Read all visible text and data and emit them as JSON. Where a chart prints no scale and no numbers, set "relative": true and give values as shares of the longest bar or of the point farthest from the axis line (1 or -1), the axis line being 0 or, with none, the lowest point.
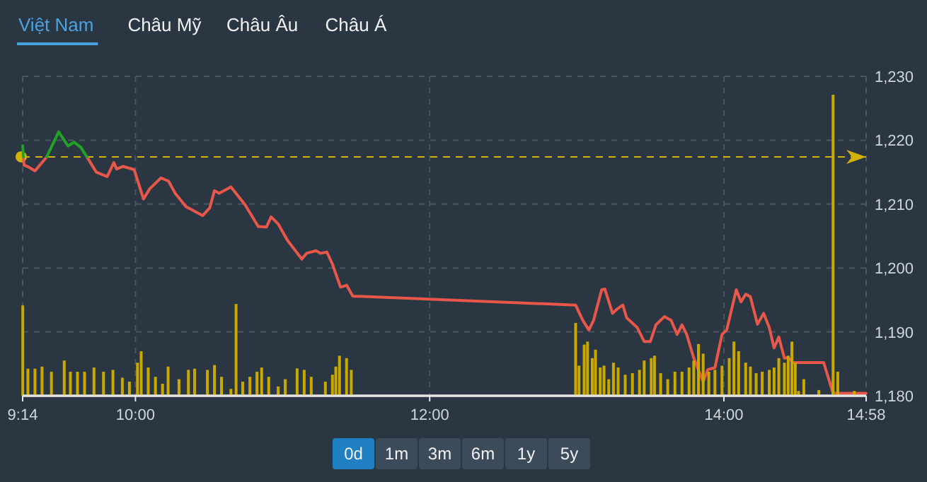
{
  "chart_data": [
    {
      "type": "line",
      "xlim": [
        9.2333,
        14.9667
      ],
      "ylim": [
        1180,
        1230
      ],
      "xticks": [
        {
          "value": 9.2333,
          "label": "9:14"
        },
        {
          "value": 10,
          "label": "10:00"
        },
        {
          "value": 12,
          "label": "12:00"
        },
        {
          "value": 14,
          "label": "14:00"
        },
        {
          "value": 14.9667,
          "label": "14:58"
        }
      ],
      "yticks": [
        {
          "value": 1180,
          "label": "1,180"
        },
        {
          "value": 1190,
          "label": "1,190"
        },
        {
          "value": 1200,
          "label": "1,200"
        },
        {
          "value": 1210,
          "label": "1,210"
        },
        {
          "value": 1220,
          "label": "1,220"
        },
        {
          "value": 1230,
          "label": "1,230"
        }
      ],
      "grid": true,
      "marker": "none",
      "ref_lines": [
        {
          "axis": "y",
          "value": 1217.4,
          "color": "#d4b106",
          "line_style": "dashed"
        }
      ],
      "series": [
        {
          "color": "#e8574a",
          "x": [
            9.238,
            9.243,
            9.275,
            9.317,
            9.365,
            9.397
          ],
          "values": [
            1217.4,
            1216.1,
            1215.8,
            1215.2,
            1216.5,
            1217.4
          ]
        },
        {
          "color": "#e8574a",
          "x": [
            9.67,
            9.734,
            9.808,
            9.853,
            9.872,
            9.917,
            9.991,
            10.055,
            10.097,
            10.174,
            10.225,
            10.27,
            10.344,
            10.457,
            10.505,
            10.537,
            10.569,
            10.649,
            10.745,
            10.835,
            10.89,
            10.922,
            10.97,
            11.034,
            11.131,
            11.163,
            11.227,
            11.259,
            11.301,
            11.339,
            11.394,
            11.436,
            11.477,
            12.992,
            13.041,
            13.082,
            13.114,
            13.169,
            13.191,
            13.243,
            13.275,
            13.313,
            13.339,
            13.41,
            13.458,
            13.5,
            13.538,
            13.596,
            13.641,
            13.682,
            13.715,
            13.747,
            13.795,
            13.859,
            13.891,
            13.939,
            13.987,
            14.019,
            14.084,
            14.116,
            14.148,
            14.18,
            14.228,
            14.27,
            14.308,
            14.341,
            14.373,
            14.411,
            14.437,
            14.469,
            14.678,
            14.742,
            14.966
          ],
          "values": [
            1217.4,
            1215.0,
            1214.3,
            1216.5,
            1215.5,
            1215.9,
            1215.4,
            1210.8,
            1212.4,
            1214.1,
            1213.6,
            1211.7,
            1209.6,
            1208.2,
            1209.4,
            1212.1,
            1211.7,
            1212.7,
            1209.9,
            1206.5,
            1206.4,
            1208.0,
            1206.9,
            1204.3,
            1201.4,
            1202.3,
            1202.7,
            1202.3,
            1202.5,
            1200.6,
            1197.0,
            1197.3,
            1195.6,
            1194.2,
            1191.8,
            1190.3,
            1191.8,
            1196.6,
            1196.7,
            1192.9,
            1193.6,
            1194.2,
            1192.2,
            1190.7,
            1188.5,
            1188.5,
            1191.1,
            1192.4,
            1191.8,
            1189.6,
            1191.1,
            1189.6,
            1185.9,
            1182.2,
            1184.1,
            1184.4,
            1189.6,
            1190.3,
            1196.6,
            1194.7,
            1195.9,
            1195.5,
            1191.2,
            1192.9,
            1190.7,
            1187.5,
            1189.2,
            1185.9,
            1186.0,
            1185.2,
            1185.2,
            1180.4,
            1180.4
          ]
        },
        {
          "color": "#1fa324",
          "x": [
            9.234,
            9.238
          ],
          "values": [
            1219.1,
            1217.4
          ]
        },
        {
          "color": "#1fa324",
          "x": [
            9.397,
            9.478,
            9.542,
            9.583,
            9.628,
            9.67
          ],
          "values": [
            1217.4,
            1221.3,
            1219.1,
            1219.7,
            1218.9,
            1217.4
          ]
        }
      ]
    },
    {
      "type": "bar",
      "relative": true,
      "color": "#c9a800",
      "xlim": [
        9.2333,
        14.9667
      ],
      "x": [
        9.234,
        9.269,
        9.317,
        9.365,
        9.429,
        9.516,
        9.558,
        9.606,
        9.654,
        9.718,
        9.783,
        9.847,
        9.911,
        9.959,
        10.014,
        10.039,
        10.087,
        10.136,
        10.184,
        10.222,
        10.296,
        10.36,
        10.402,
        10.489,
        10.537,
        10.585,
        10.649,
        10.684,
        10.729,
        10.778,
        10.826,
        10.858,
        10.906,
        10.97,
        11.018,
        11.099,
        11.147,
        11.195,
        11.291,
        11.339,
        11.362,
        11.387,
        11.435,
        11.467,
        12.992,
        13.015,
        13.05,
        13.073,
        13.105,
        13.127,
        13.159,
        13.185,
        13.217,
        13.249,
        13.281,
        13.329,
        13.378,
        13.426,
        13.458,
        13.506,
        13.528,
        13.57,
        13.618,
        13.667,
        13.715,
        13.763,
        13.795,
        13.827,
        13.859,
        13.897,
        13.939,
        13.987,
        14.036,
        14.068,
        14.1,
        14.148,
        14.18,
        14.219,
        14.26,
        14.308,
        14.341,
        14.373,
        14.411,
        14.437,
        14.462,
        14.485,
        14.507,
        14.543,
        14.645,
        14.742,
        14.774,
        14.886
      ],
      "values": [
        0.3,
        0.09,
        0.09,
        0.097,
        0.08,
        0.117,
        0.08,
        0.08,
        0.08,
        0.094,
        0.08,
        0.086,
        0.06,
        0.047,
        0.11,
        0.148,
        0.094,
        0.063,
        0.04,
        0.097,
        0.055,
        0.086,
        0.09,
        0.086,
        0.102,
        0.063,
        0.023,
        0.305,
        0.047,
        0.063,
        0.08,
        0.094,
        0.063,
        0.031,
        0.055,
        0.091,
        0.086,
        0.063,
        0.047,
        0.07,
        0.097,
        0.133,
        0.125,
        0.086,
        0.242,
        0.1,
        0.17,
        0.18,
        0.125,
        0.153,
        0.094,
        0.1,
        0.055,
        0.11,
        0.094,
        0.07,
        0.075,
        0.086,
        0.117,
        0.125,
        0.133,
        0.075,
        0.055,
        0.08,
        0.08,
        0.094,
        0.117,
        0.172,
        0.14,
        0.08,
        0.086,
        0.1,
        0.125,
        0.18,
        0.148,
        0.11,
        0.097,
        0.075,
        0.08,
        0.086,
        0.094,
        0.125,
        0.11,
        0.133,
        0.18,
        0.11,
        0.016,
        0.055,
        0.019,
        1,
        0.08,
        0.016
      ]
    },
    {
      "type": "other",
      "categories": [
        "Việt Nam",
        "Châu Mỹ",
        "Châu Âu",
        "Châu Á"
      ]
    },
    {
      "type": "other",
      "categories": [
        "0d",
        "1m",
        "3m",
        "6m",
        "1y",
        "5y"
      ]
    }
  ]
}
